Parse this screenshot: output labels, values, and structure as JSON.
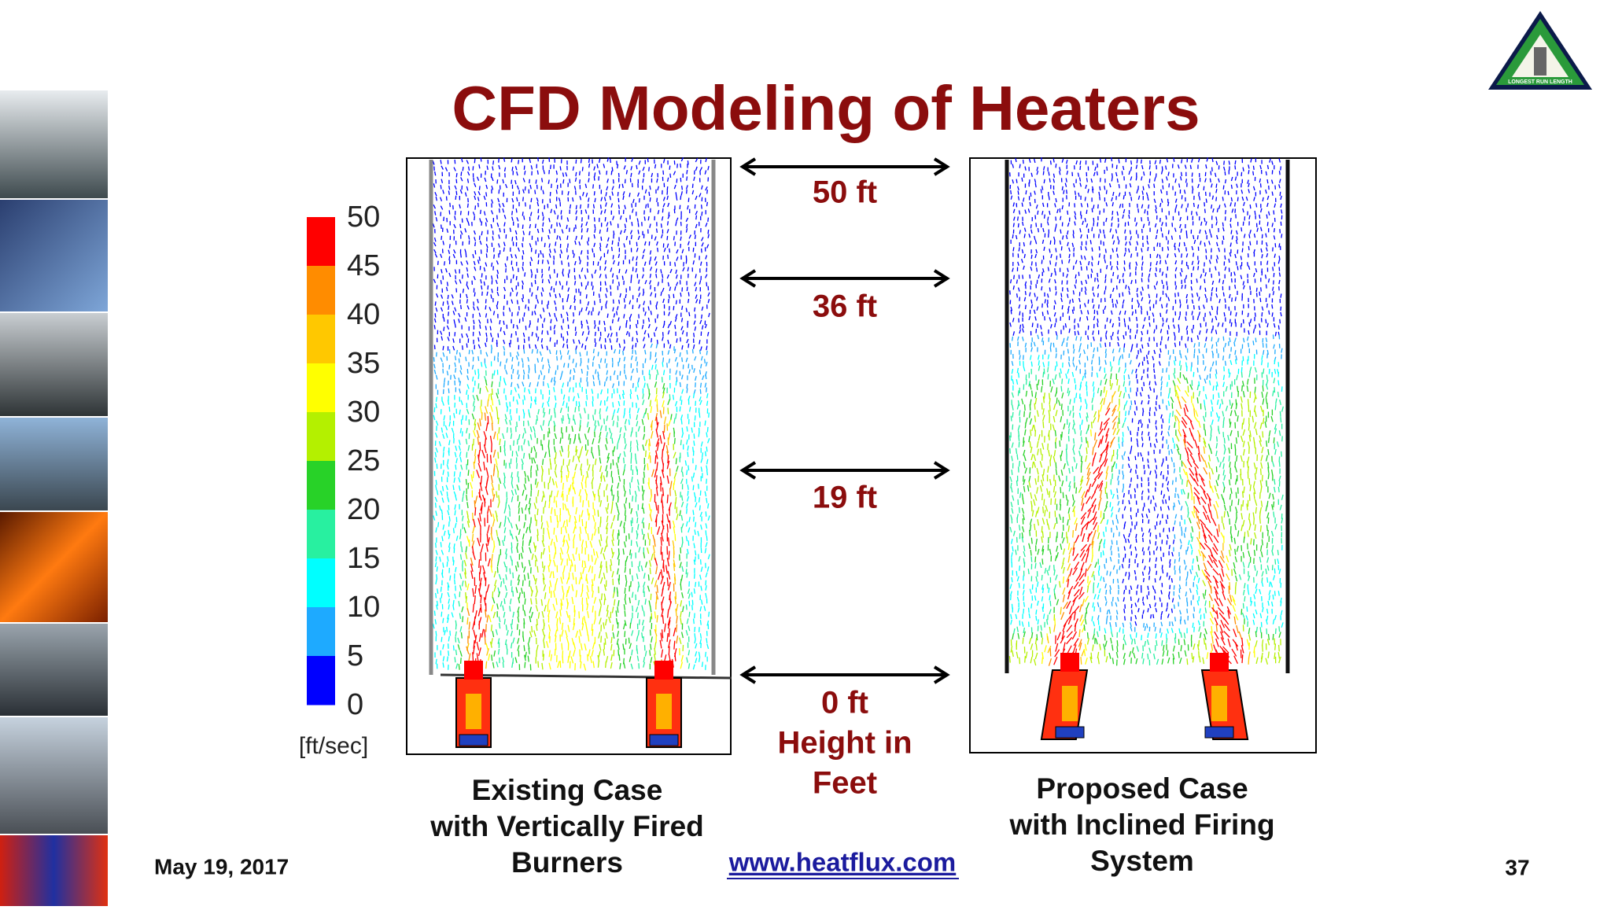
{
  "title": "CFD Modeling of Heaters",
  "logo": {
    "text": "LONGEST RUN LENGTH"
  },
  "colorbar": {
    "labels": [
      "50",
      "45",
      "40",
      "35",
      "30",
      "25",
      "20",
      "15",
      "10",
      "5",
      "0"
    ],
    "unit": "[ft/sec]"
  },
  "heights": [
    "50 ft",
    "36 ft",
    "19 ft",
    "0 ft"
  ],
  "height_caption": [
    "Height in",
    "Feet"
  ],
  "left_caption": [
    "Existing Case",
    "with Vertically Fired",
    "Burners"
  ],
  "right_caption": [
    "Proposed Case",
    "with Inclined Firing",
    "System"
  ],
  "footer": {
    "date": "May 19, 2017",
    "url": "www.heatflux.com",
    "page": "37"
  }
}
